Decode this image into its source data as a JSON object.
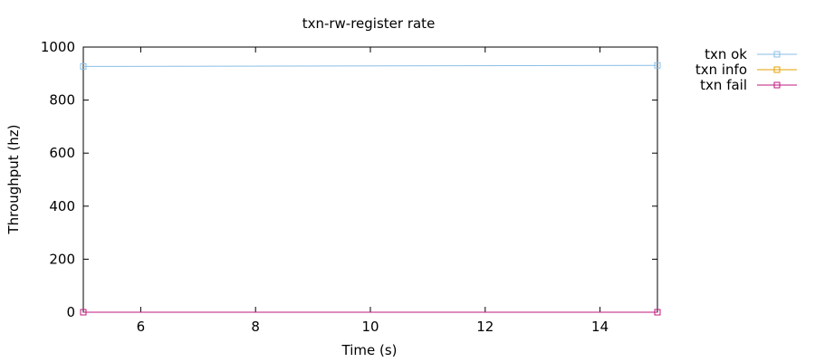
{
  "chart_data": {
    "type": "line",
    "title": "txn-rw-register rate",
    "xlabel": "Time (s)",
    "ylabel": "Throughput (hz)",
    "xlim": [
      5,
      15
    ],
    "ylim": [
      0,
      1000
    ],
    "xticks": [
      6,
      8,
      10,
      12,
      14
    ],
    "yticks": [
      0,
      200,
      400,
      600,
      800,
      1000
    ],
    "grid": false,
    "legend_position": "right-outside-top",
    "series": [
      {
        "name": "txn ok",
        "color": "#88bfe6",
        "marker": "square",
        "x": [
          5,
          15
        ],
        "y": [
          927,
          931
        ]
      },
      {
        "name": "txn info",
        "color": "#e6a100",
        "marker": "square",
        "x": [],
        "y": []
      },
      {
        "name": "txn fail",
        "color": "#c0177d",
        "marker": "square",
        "x": [
          5,
          15
        ],
        "y": [
          0,
          0
        ]
      }
    ]
  }
}
